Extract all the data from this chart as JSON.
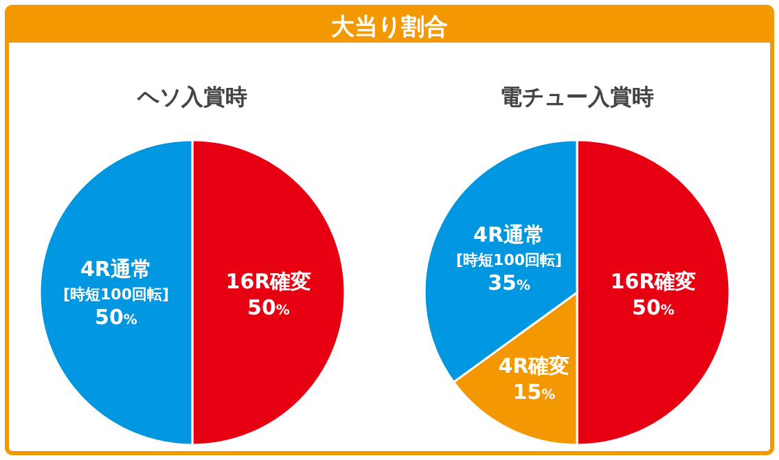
{
  "chart_data": [
    {
      "type": "pie",
      "title": "ヘソ入賞時",
      "annotations": [
        "大当り割合"
      ],
      "categories": [
        "16R確変",
        "4R通常\n[時短100回転]"
      ],
      "values": [
        50,
        50
      ],
      "colors": [
        "#e60012",
        "#0097e0"
      ],
      "value_labels": [
        "50%",
        "50%"
      ]
    },
    {
      "type": "pie",
      "title": "電チュー入賞時",
      "categories": [
        "16R確変",
        "4R確変",
        "4R通常\n[時短100回転]"
      ],
      "values": [
        50,
        15,
        35
      ],
      "colors": [
        "#e60012",
        "#f39800",
        "#0097e0"
      ],
      "value_labels": [
        "50%",
        "15%",
        "35%"
      ]
    }
  ]
}
